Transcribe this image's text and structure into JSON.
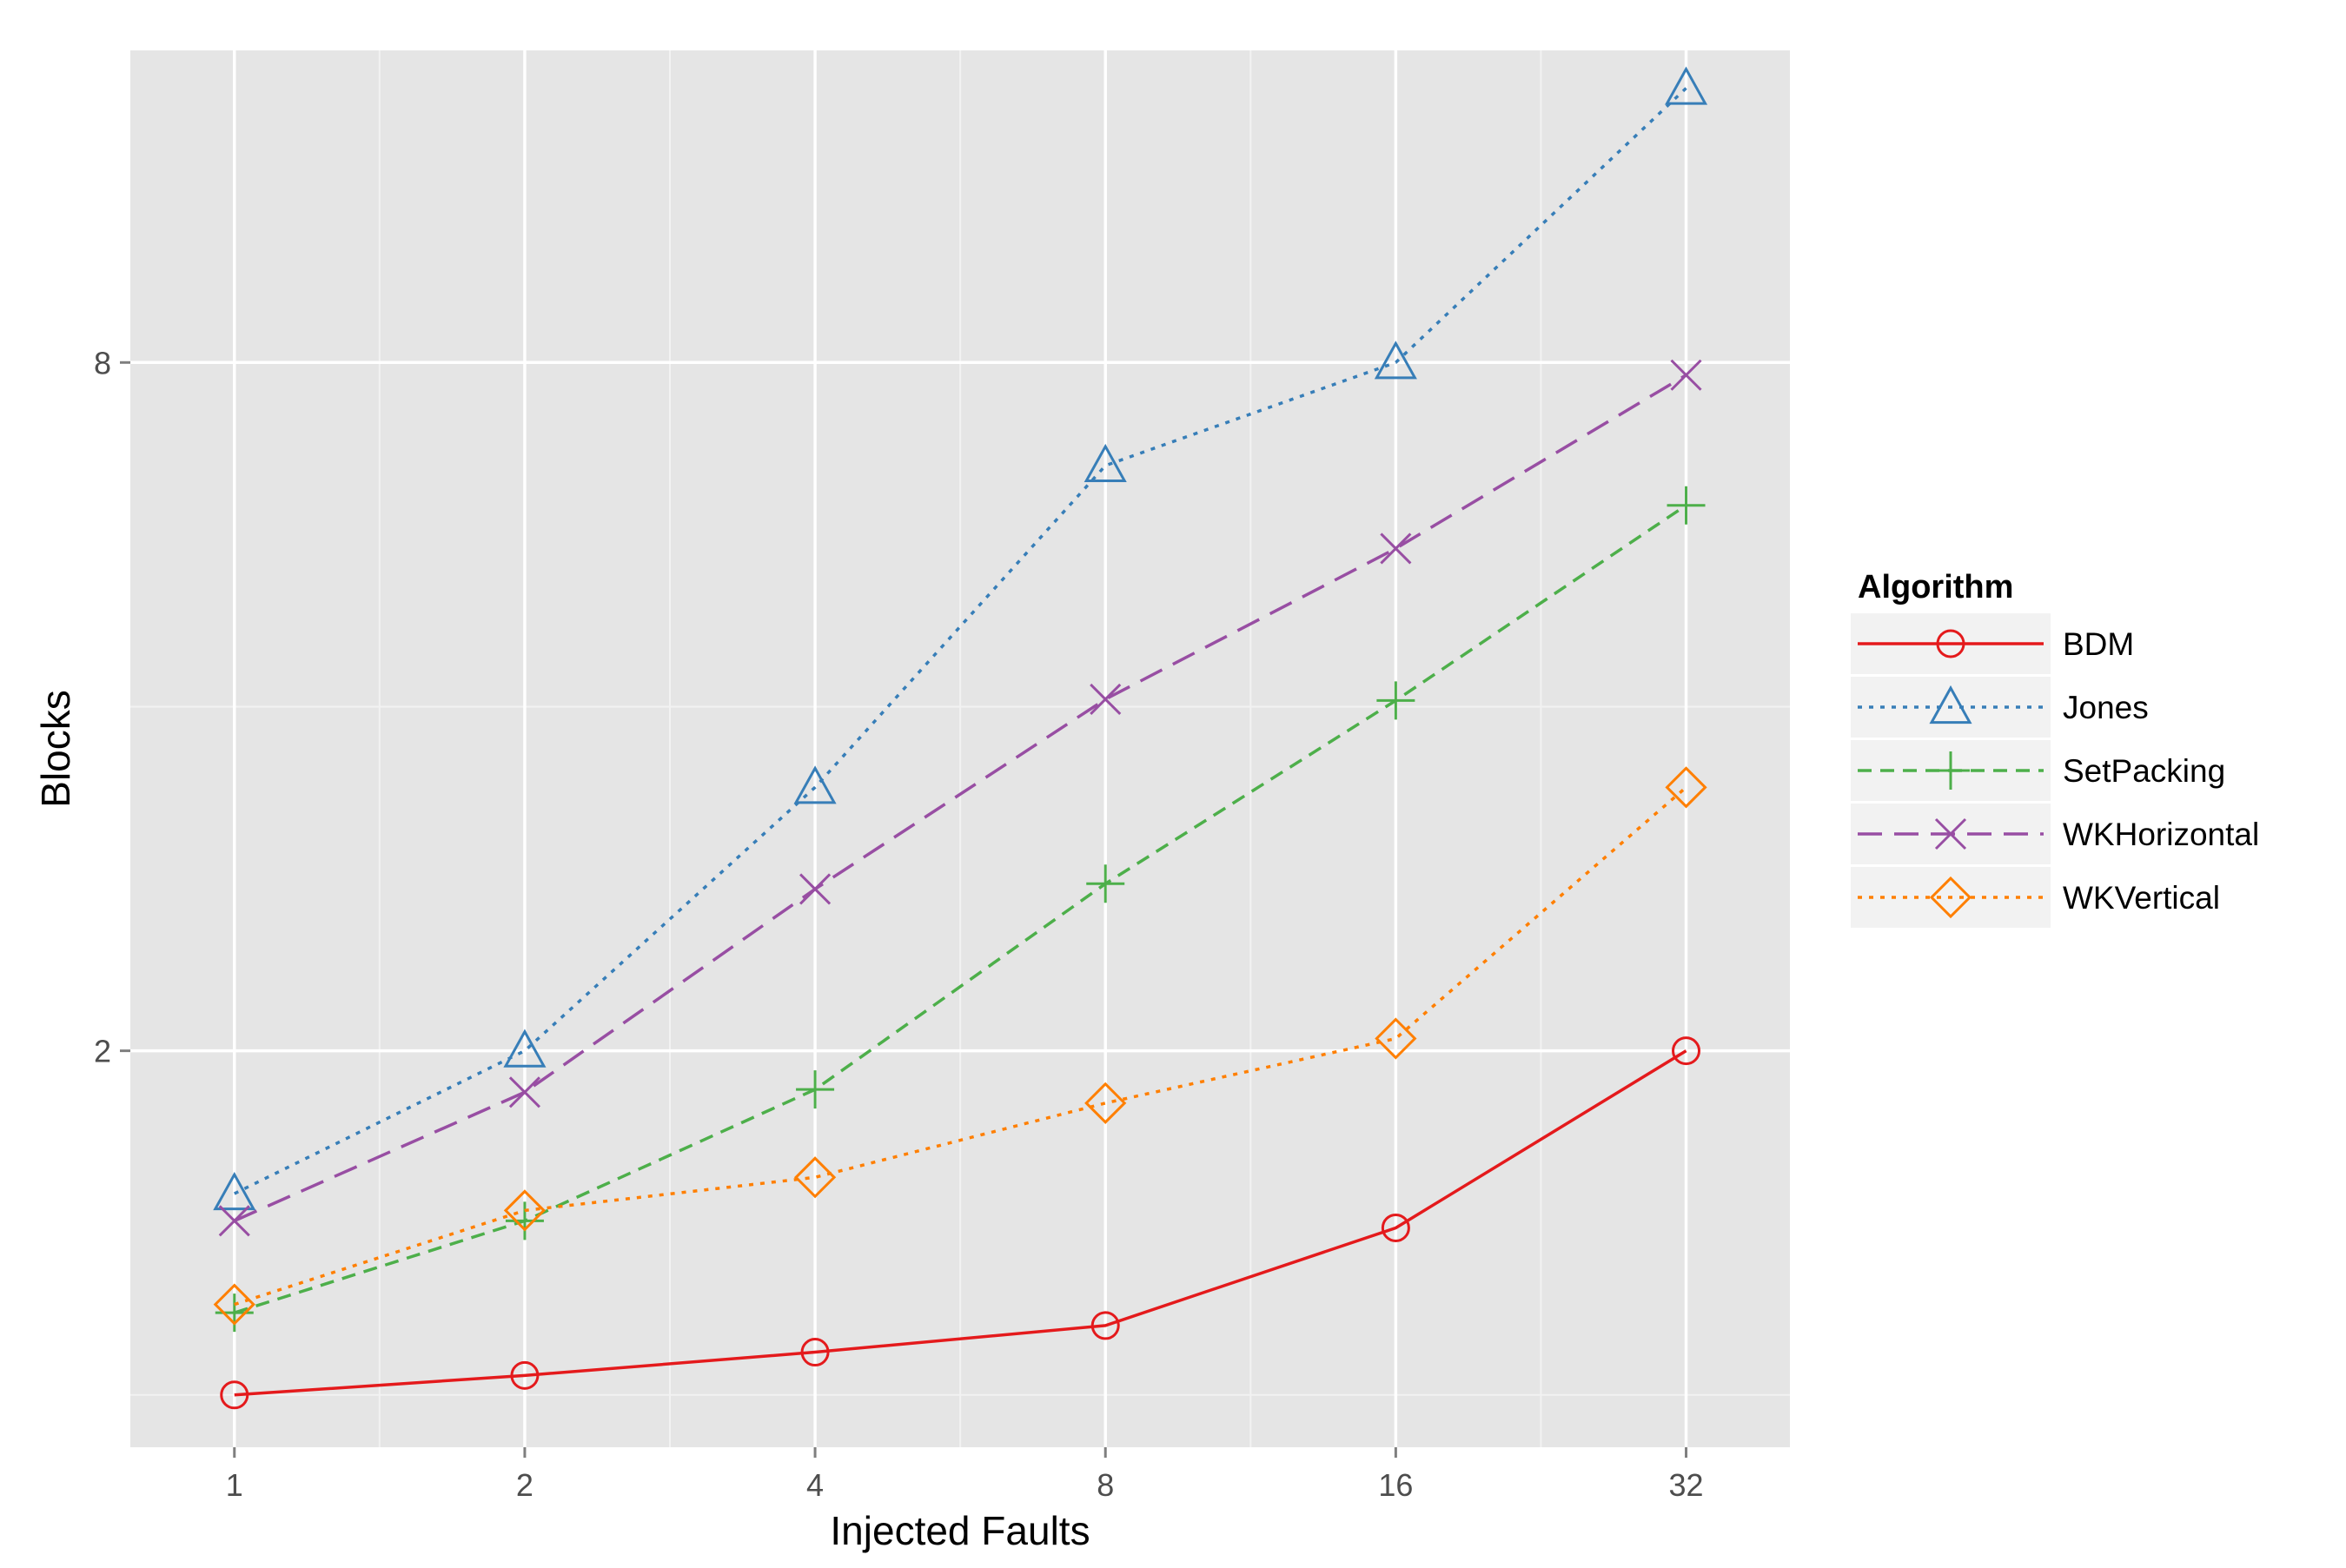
{
  "chart_data": {
    "type": "line",
    "xlabel": "Injected Faults",
    "ylabel": "Blocks",
    "x_scale": "log2",
    "y_scale": "log",
    "x": [
      1,
      2,
      4,
      8,
      16,
      32
    ],
    "x_tick_labels": [
      "1",
      "2",
      "4",
      "8",
      "16",
      "32"
    ],
    "y_ticks": [
      2,
      8
    ],
    "y_tick_labels": [
      "2",
      "8"
    ],
    "xlim": [
      0.78,
      41
    ],
    "ylim": [
      0.9,
      15
    ],
    "grid": true,
    "legend": {
      "title": "Algorithm",
      "position": "right"
    },
    "series": [
      {
        "name": "BDM",
        "color": "#e41a1c",
        "dash": "solid",
        "marker": "circle",
        "values": [
          1.0,
          1.04,
          1.09,
          1.15,
          1.4,
          2.0
        ]
      },
      {
        "name": "Jones",
        "color": "#377eb8",
        "dash": "dotted",
        "marker": "triangle",
        "values": [
          1.5,
          2.0,
          3.4,
          6.5,
          8.0,
          13.9
        ]
      },
      {
        "name": "SetPacking",
        "color": "#4daf4a",
        "dash": "dashed",
        "marker": "plus",
        "values": [
          1.18,
          1.42,
          1.85,
          2.8,
          4.05,
          6.0
        ]
      },
      {
        "name": "WKHorizontal",
        "color": "#984ea3",
        "dash": "longdash",
        "marker": "cross",
        "values": [
          1.42,
          1.84,
          2.77,
          4.06,
          5.5,
          7.8
        ]
      },
      {
        "name": "WKVertical",
        "color": "#ff7f00",
        "dash": "dotted",
        "marker": "diamond",
        "values": [
          1.2,
          1.45,
          1.55,
          1.8,
          2.05,
          3.4
        ]
      }
    ]
  }
}
